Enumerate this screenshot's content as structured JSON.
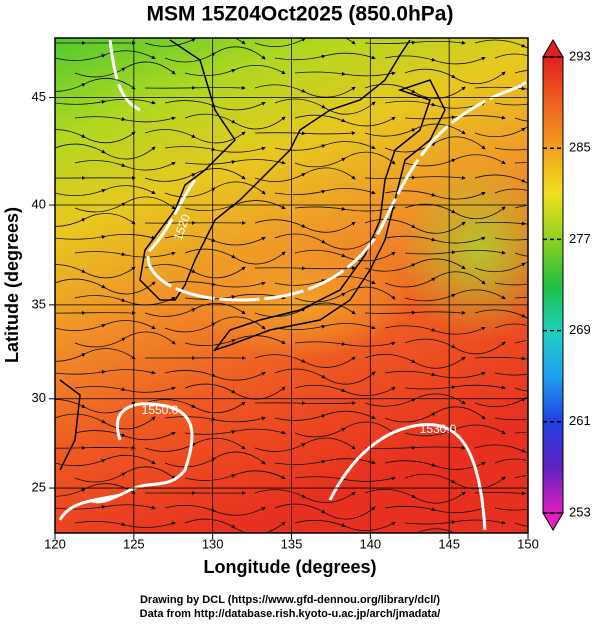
{
  "chart_data": {
    "type": "map",
    "title": "MSM 15Z04Oct2025 (850.0hPa)",
    "xlabel": "Longitude (degrees)",
    "ylabel": "Latitude  (degrees)",
    "xlim": [
      120,
      150
    ],
    "xticks": [
      120,
      125,
      130,
      135,
      140,
      145,
      150
    ],
    "ylim": [
      22.4,
      47.6
    ],
    "yticks": [
      25,
      30,
      35,
      40,
      45
    ],
    "projection": "mercator",
    "grid": true,
    "colorbar": {
      "lim": [
        253,
        293
      ],
      "ticks": [
        253,
        261,
        269,
        277,
        285,
        293
      ],
      "colors": [
        "#e020c0",
        "#6020c0",
        "#2040e0",
        "#20a0f0",
        "#20d0c0",
        "#20c040",
        "#90d020",
        "#f0e020",
        "#f0a020",
        "#f06020",
        "#e02020"
      ]
    },
    "contour_labels": [
      "1520",
      "1550.0",
      "1530.0"
    ]
  },
  "footer": [
    "Drawing by DCL (https://www.gfd-dennou.org/library/dcl/)",
    "Data from http://database.rish.kyoto-u.ac.jp/arch/jmadata/"
  ]
}
